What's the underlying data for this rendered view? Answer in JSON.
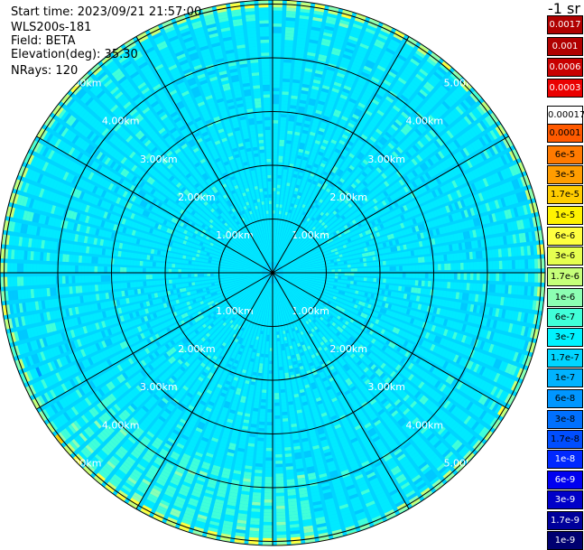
{
  "header": {
    "start_time": "Start time: 2023/09/21 21:57:00",
    "instrument": "WLS200s-181",
    "field": "Field: BETA",
    "elevation": "Elevation(deg): 35.30",
    "nrays": "NRays: 120"
  },
  "unit_label": "-1 sr",
  "chart_data": {
    "type": "heatmap",
    "projection": "polar-ppi",
    "field": "BETA",
    "elevation_deg": 35.3,
    "nrays": 120,
    "range_rings_km": [
      1.0,
      2.0,
      3.0,
      4.0,
      5.0
    ],
    "ring_labels": [
      "1.00km",
      "2.00km",
      "3.00km",
      "4.00km",
      "5.00km"
    ],
    "max_range_km": 6.3,
    "spokes_deg": [
      0,
      30,
      60,
      90,
      120,
      150,
      180,
      210,
      240,
      270,
      300,
      330
    ],
    "colorbar": {
      "labels": [
        "0.0017",
        "0.001",
        "0.0006",
        "0.0003",
        "0.00017",
        "0.0001",
        "6e-5",
        "3e-5",
        "1.7e-5",
        "1e-5",
        "6e-6",
        "3e-6",
        "1.7e-6",
        "1e-6",
        "6e-7",
        "3e-7",
        "1.7e-7",
        "1e-7",
        "6e-8",
        "3e-8",
        "1.7e-8",
        "1e-8",
        "6e-9",
        "3e-9",
        "1.7e-9",
        "1e-9"
      ],
      "colors": [
        "#b00000",
        "#b00000",
        "#c80000",
        "#ea0000",
        "#ffffff",
        "#ff5a00",
        "#ff7a00",
        "#ff9d00",
        "#ffcc00",
        "#fff200",
        "#ffff40",
        "#e6ff50",
        "#c6ff7a",
        "#8cffb3",
        "#40ffd9",
        "#00f2ff",
        "#00d5ff",
        "#00b3ff",
        "#0096ff",
        "#0070ff",
        "#004eff",
        "#0028ff",
        "#0000f0",
        "#0000c8",
        "#00009b",
        "#000070"
      ]
    }
  }
}
